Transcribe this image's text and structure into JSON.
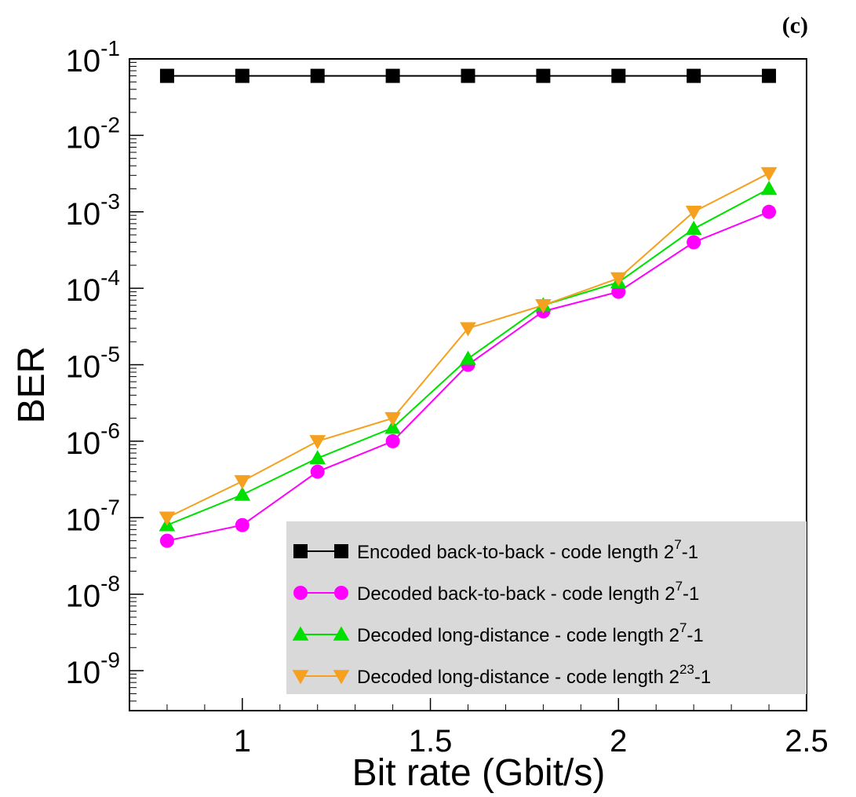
{
  "panel_label": "(c)",
  "chart_data": {
    "type": "line",
    "title": "",
    "xlabel": "Bit rate (Gbit/s)",
    "ylabel": "BER",
    "xlim": [
      0.7,
      2.5
    ],
    "ylim": [
      3e-10,
      0.1
    ],
    "yscale": "log",
    "x_ticks": [
      1,
      1.5,
      2,
      2.5
    ],
    "x_tick_labels": [
      "1",
      "1.5",
      "2",
      "2.5"
    ],
    "y_ticks": [
      0.1,
      0.01,
      0.001,
      0.0001,
      1e-05,
      1e-06,
      1e-07,
      1e-08,
      1e-09
    ],
    "y_tick_labels": [
      {
        "base": "10",
        "exp": "-1"
      },
      {
        "base": "10",
        "exp": "-2"
      },
      {
        "base": "10",
        "exp": "-3"
      },
      {
        "base": "10",
        "exp": "-4"
      },
      {
        "base": "10",
        "exp": "-5"
      },
      {
        "base": "10",
        "exp": "-6"
      },
      {
        "base": "10",
        "exp": "-7"
      },
      {
        "base": "10",
        "exp": "-8"
      },
      {
        "base": "10",
        "exp": "-9"
      }
    ],
    "grid": false,
    "legend_position": "bottom-right",
    "x": [
      0.8,
      1.0,
      1.2,
      1.4,
      1.6,
      1.8,
      2.0,
      2.2,
      2.4
    ],
    "series": [
      {
        "name": "Encoded back-to-back  - code length 2^7-1",
        "label_parts": {
          "prefix": "Encoded back-to-back  - code length 2",
          "exp": "7",
          "suffix": "-1"
        },
        "color": "#000000",
        "marker": "square",
        "values": [
          0.06,
          0.06,
          0.06,
          0.06,
          0.06,
          0.06,
          0.06,
          0.06,
          0.06
        ]
      },
      {
        "name": "Decoded back-to-back  - code length 2^7-1",
        "label_parts": {
          "prefix": "Decoded back-to-back  - code length 2",
          "exp": "7",
          "suffix": "-1"
        },
        "color": "#ff00ff",
        "marker": "circle",
        "values": [
          5e-08,
          8e-08,
          4e-07,
          1e-06,
          1e-05,
          5e-05,
          9e-05,
          0.0004,
          0.001
        ]
      },
      {
        "name": "Decoded long-distance - code length 2^7-1",
        "label_parts": {
          "prefix": "Decoded long-distance - code length 2",
          "exp": "7",
          "suffix": "-1"
        },
        "color": "#00e000",
        "marker": "triangle-up",
        "values": [
          8e-08,
          2e-07,
          6e-07,
          1.5e-06,
          1.2e-05,
          6e-05,
          0.00012,
          0.0006,
          0.002
        ]
      },
      {
        "name": "Decoded long-distance - code length 2^23-1",
        "label_parts": {
          "prefix": "Decoded long-distance - code length 2",
          "exp": "23",
          "suffix": "-1"
        },
        "color": "#f5a01f",
        "marker": "triangle-down",
        "values": [
          1e-07,
          3e-07,
          1e-06,
          2e-06,
          3e-05,
          6e-05,
          0.000135,
          0.001,
          0.0032
        ]
      }
    ]
  }
}
